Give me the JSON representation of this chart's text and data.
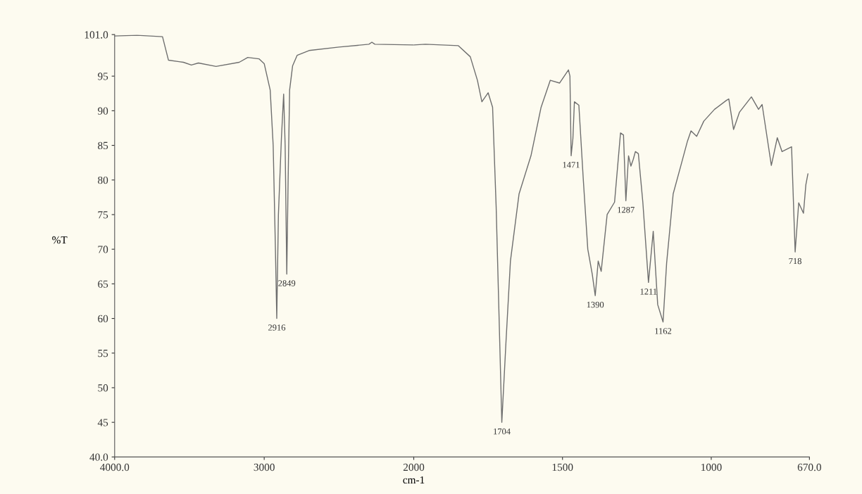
{
  "chart_data": [
    {
      "type": "line",
      "ylabel": "%T",
      "x": [
        4000,
        3850,
        3680,
        3640,
        3540,
        3487,
        3440,
        3322,
        3167,
        3110,
        3035,
        3000,
        2960,
        2940,
        2925,
        2916,
        2905,
        2885,
        2870,
        2860,
        2849,
        2840,
        2830,
        2810,
        2780,
        2700,
        2500,
        2300,
        2280,
        2260,
        2000
      ],
      "series": [
        {
          "color": "#6e6e6e",
          "values": [
            100.8,
            100.9,
            100.7,
            97.3,
            97.0,
            96.6,
            96.9,
            96.4,
            97.0,
            97.7,
            97.5,
            96.8,
            93,
            85,
            70,
            60,
            75,
            86,
            92.4,
            85,
            66.4,
            80,
            93,
            96.5,
            98,
            98.7,
            99.2,
            99.6,
            99.9,
            99.6,
            99.5
          ]
        }
      ],
      "xlim": [
        4000,
        2000
      ],
      "xticks": [
        {
          "value": 4000,
          "label": "4000.0"
        },
        3000
      ],
      "ylim": [
        40,
        101
      ],
      "yticks": [
        {
          "value": 40,
          "label": "40.0"
        },
        45,
        50,
        55,
        60,
        65,
        70,
        75,
        80,
        85,
        90,
        95,
        {
          "value": 101,
          "label": "101.0"
        }
      ],
      "grid": false,
      "annotations": [
        {
          "text": "2916",
          "x": 2916,
          "y": 60
        },
        {
          "text": "2849",
          "x": 2849,
          "y": 66.4
        }
      ]
    },
    {
      "type": "line",
      "xlabel": "cm-1",
      "x": [
        2000,
        1961,
        1850,
        1810,
        1786,
        1771,
        1750,
        1735,
        1723,
        1711,
        1704,
        1690,
        1675,
        1646,
        1606,
        1572,
        1541,
        1510,
        1480,
        1475,
        1471,
        1465,
        1460,
        1445,
        1430,
        1415,
        1400,
        1390,
        1380,
        1370,
        1350,
        1325,
        1305,
        1295,
        1287,
        1278,
        1270,
        1262,
        1255,
        1245,
        1230,
        1211,
        1195,
        1180,
        1162,
        1150,
        1128,
        1102,
        1080,
        1068,
        1049,
        1025,
        989,
        949,
        941,
        925,
        905,
        865,
        841,
        829,
        798,
        778,
        762,
        730,
        718,
        706,
        690,
        682,
        675
      ],
      "series": [
        {
          "color": "#6e6e6e",
          "values": [
            99.5,
            99.6,
            99.4,
            97.8,
            94.4,
            91.3,
            92.6,
            90.5,
            76.1,
            56.6,
            45,
            56.6,
            68.3,
            78,
            83.5,
            90.5,
            94.4,
            94.0,
            95.9,
            95,
            83.5,
            86,
            91.3,
            90.8,
            80,
            70,
            66.4,
            63.3,
            68.3,
            66.8,
            75,
            76.8,
            86.8,
            86.5,
            77,
            83.5,
            82,
            83,
            84.1,
            83.8,
            76.8,
            65.2,
            72.6,
            62,
            59.5,
            68,
            78,
            82.1,
            85.6,
            87.1,
            86.3,
            88.5,
            90.2,
            91.5,
            91.7,
            87.3,
            89.8,
            92.0,
            90.2,
            90.9,
            82.1,
            86.1,
            84.1,
            84.8,
            69.6,
            76.7,
            75.2,
            79.3,
            80.9
          ]
        }
      ],
      "xlim": [
        2000,
        670
      ],
      "xticks": [
        2000,
        1500,
        1000,
        {
          "value": 670,
          "label": "670.0"
        }
      ],
      "ylim": [
        40,
        101
      ],
      "tick_labels": "x",
      "grid": false,
      "annotations": [
        {
          "text": "1704",
          "x": 1704,
          "y": 45
        },
        {
          "text": "1471",
          "x": 1471,
          "y": 83.5
        },
        {
          "text": "1390",
          "x": 1390,
          "y": 63.3
        },
        {
          "text": "1287",
          "x": 1287,
          "y": 77
        },
        {
          "text": "1211",
          "x": 1211,
          "y": 65.2
        },
        {
          "text": "1162",
          "x": 1162,
          "y": 59.5
        },
        {
          "text": "718",
          "x": 718,
          "y": 69.6
        }
      ]
    }
  ]
}
